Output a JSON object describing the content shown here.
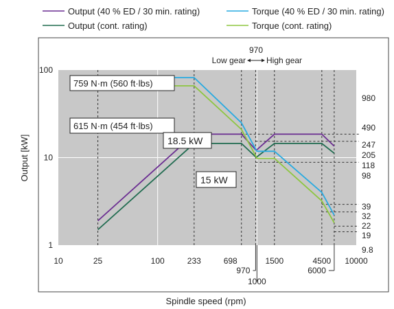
{
  "chart_data": {
    "type": "line",
    "xlabel": "Spindle speed (rpm)",
    "ylabel": "Output [kW]",
    "x_scale": "log",
    "y_scale": "log",
    "xlim": [
      10,
      10000
    ],
    "ylim": [
      1,
      100
    ],
    "x_ticks": [
      "10",
      "25",
      "100",
      "233",
      "698",
      "1500",
      "4500",
      "10000"
    ],
    "x_ticks_below": [
      "970",
      "1000",
      "6000"
    ],
    "y_ticks_left": [
      "1",
      "10",
      "100"
    ],
    "y_ticks_right": [
      "9.8",
      "19",
      "22",
      "32",
      "39",
      "98",
      "118",
      "205",
      "247",
      "490",
      "980"
    ],
    "grid": true,
    "legend_position": "top",
    "gear_labels": {
      "top": "970",
      "low": "Low gear",
      "high": "High gear"
    },
    "annotations": {
      "torque_max": "759 N·m (560 ft·lbs)",
      "torque_cont": "615 N·m (454 ft·lbs)",
      "output_max": "18.5 kW",
      "output_cont": "15 kW"
    },
    "series": [
      {
        "name": "Output (40 % ED / 30 min. rating)",
        "color": "#6a2c91",
        "x": [
          25,
          233,
          698,
          970,
          1000,
          1500,
          4500,
          6000
        ],
        "y": [
          1.9,
          18.5,
          18.5,
          12.3,
          12.3,
          18.5,
          18.5,
          13.5
        ]
      },
      {
        "name": "Output (cont. rating)",
        "color": "#1f6b4f",
        "x": [
          25,
          233,
          698,
          970,
          1000,
          1500,
          4500,
          6000
        ],
        "y": [
          1.5,
          14.5,
          14.5,
          10.2,
          10.2,
          14.5,
          14.5,
          11.2
        ]
      },
      {
        "name": "Torque (40 % ED / 30 min. rating)",
        "color": "#27aae1",
        "x": [
          25,
          233,
          698,
          970,
          1000,
          1500,
          4500,
          6000
        ],
        "y": [
          82,
          82,
          25,
          12.5,
          11.8,
          11.8,
          4,
          2.2
        ]
      },
      {
        "name": "Torque (cont. rating)",
        "color": "#8dc63f",
        "x": [
          25,
          233,
          698,
          970,
          1000,
          1500,
          4500,
          6000
        ],
        "y": [
          66,
          66,
          21,
          10.5,
          9.8,
          9.8,
          3.2,
          1.8
        ]
      }
    ]
  }
}
